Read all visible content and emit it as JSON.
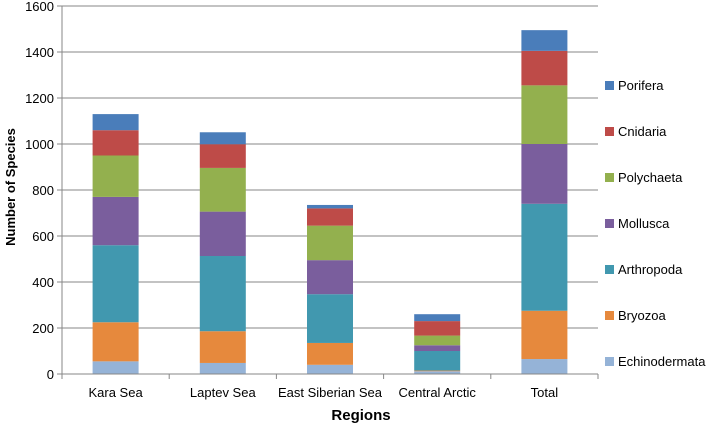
{
  "chart_data": {
    "type": "bar",
    "stacked": true,
    "title": "",
    "xlabel": "Regions",
    "ylabel": "Number of Species",
    "ylim": [
      0,
      1600
    ],
    "yticks": [
      0,
      200,
      400,
      600,
      800,
      1000,
      1200,
      1400,
      1600
    ],
    "grid": true,
    "legend_position": "right",
    "categories": [
      "Kara Sea",
      "Laptev Sea",
      "East Siberian Sea",
      "Central Arctic",
      "Total"
    ],
    "series": [
      {
        "name": "Echinodermata",
        "color": "#95B3D7",
        "values": [
          55,
          48,
          40,
          12,
          65
        ]
      },
      {
        "name": "Bryozoa",
        "color": "#E6893D",
        "values": [
          170,
          138,
          95,
          3,
          210
        ]
      },
      {
        "name": "Arthropoda",
        "color": "#4198AF",
        "values": [
          335,
          327,
          212,
          85,
          465
        ]
      },
      {
        "name": "Mollusca",
        "color": "#7A5E9D",
        "values": [
          210,
          193,
          148,
          25,
          260
        ]
      },
      {
        "name": "Polychaeta",
        "color": "#93B04E",
        "values": [
          180,
          190,
          150,
          42,
          255
        ]
      },
      {
        "name": "Cnidaria",
        "color": "#BE4B48",
        "values": [
          110,
          103,
          75,
          63,
          150
        ]
      },
      {
        "name": "Porifera",
        "color": "#4A7DBA",
        "values": [
          70,
          52,
          15,
          30,
          90
        ]
      }
    ]
  }
}
